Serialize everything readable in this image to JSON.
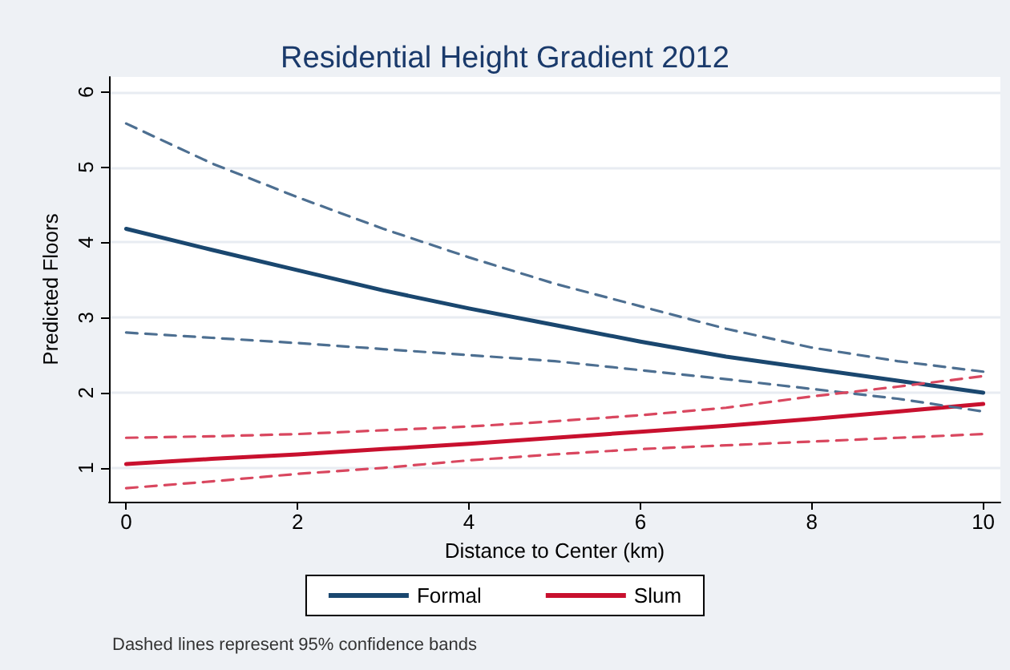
{
  "chart_data": {
    "type": "line",
    "title": "Residential Height Gradient 2012",
    "xlabel": "Distance to Center (km)",
    "ylabel": "Predicted Floors",
    "x": [
      0,
      1,
      2,
      3,
      4,
      5,
      6,
      7,
      8,
      9,
      10
    ],
    "series": [
      {
        "name": "Formal",
        "color": "#1a476f",
        "values": [
          4.18,
          3.9,
          3.63,
          3.36,
          3.12,
          2.9,
          2.68,
          2.48,
          2.32,
          2.16,
          2.0
        ]
      },
      {
        "name": "Slum",
        "color": "#c8102e",
        "values": [
          1.05,
          1.12,
          1.18,
          1.25,
          1.32,
          1.4,
          1.48,
          1.56,
          1.65,
          1.75,
          1.85
        ]
      },
      {
        "color": "#4d6f91",
        "line_style": "dashed",
        "values": [
          5.58,
          5.05,
          4.6,
          4.18,
          3.8,
          3.45,
          3.15,
          2.85,
          2.6,
          2.42,
          2.28
        ]
      },
      {
        "color": "#4d6f91",
        "line_style": "dashed",
        "values": [
          2.8,
          2.73,
          2.66,
          2.58,
          2.5,
          2.42,
          2.3,
          2.18,
          2.05,
          1.92,
          1.75
        ]
      },
      {
        "color": "#d9475f",
        "line_style": "dashed",
        "values": [
          1.4,
          1.42,
          1.45,
          1.5,
          1.55,
          1.62,
          1.7,
          1.8,
          1.95,
          2.08,
          2.22
        ]
      },
      {
        "color": "#d9475f",
        "line_style": "dashed",
        "values": [
          0.73,
          0.82,
          0.92,
          1.0,
          1.1,
          1.18,
          1.25,
          1.3,
          1.35,
          1.4,
          1.45
        ]
      }
    ],
    "xlim": [
      -0.2,
      10.2
    ],
    "xticks": [
      0,
      2,
      4,
      6,
      8,
      10
    ],
    "ylim": [
      0.55,
      6.2
    ],
    "yticks": [
      1,
      2,
      3,
      4,
      5,
      6
    ],
    "grid": "y",
    "legend": "bottom",
    "marker": "none",
    "line_style": "solid",
    "annotations": [
      "Dashed lines represent 95% confidence bands"
    ]
  }
}
